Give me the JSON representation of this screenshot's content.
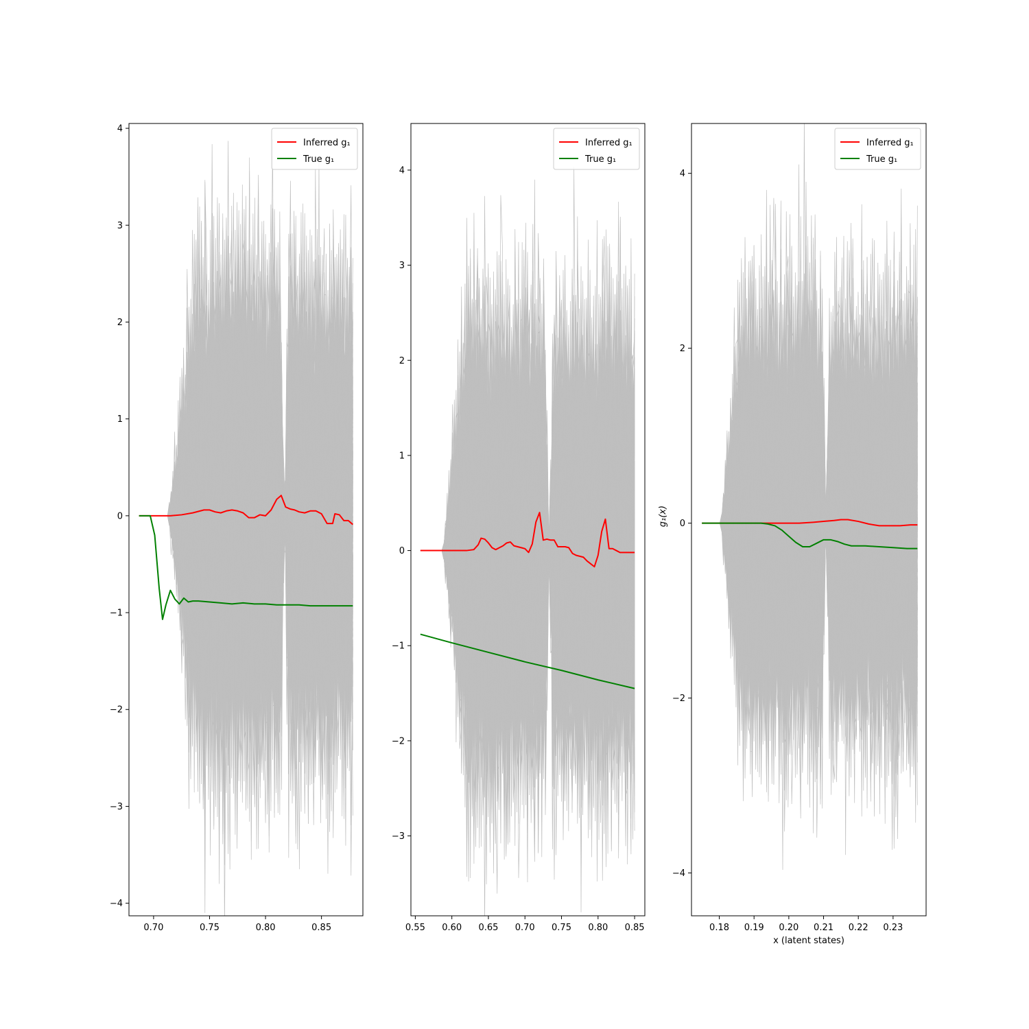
{
  "chart_data": [
    {
      "type": "line",
      "title": "",
      "xlabel": "",
      "ylabel": "",
      "xlim": [
        0.678,
        0.887
      ],
      "ylim": [
        -4.13,
        4.05
      ],
      "xticks": [
        0.7,
        0.75,
        0.8,
        0.85
      ],
      "xtick_labels": [
        "0.70",
        "0.75",
        "0.80",
        "0.85"
      ],
      "yticks": [
        -4,
        -3,
        -2,
        -1,
        0,
        1,
        2,
        3,
        4
      ],
      "ytick_labels": [
        "−4",
        "−3",
        "−2",
        "−1",
        "0",
        "1",
        "2",
        "3",
        "4"
      ],
      "legend_position": "top-right",
      "background_samples": {
        "color": "#bfbfbf",
        "count": 300,
        "x_start": 0.687,
        "x_end": 0.878,
        "flat_until": 0.713,
        "ramp_until": 0.74,
        "pinch_at": 0.817,
        "segments": [
          {
            "x_from": 0.713,
            "x_to": 0.817,
            "amplitude": 1.3
          },
          {
            "x_from": 0.817,
            "x_to": 0.878,
            "amplitude": 1.25
          }
        ]
      },
      "series": [
        {
          "name": "Inferred g₁",
          "color": "#ff0000",
          "x": [
            0.687,
            0.7,
            0.715,
            0.725,
            0.735,
            0.745,
            0.75,
            0.755,
            0.76,
            0.765,
            0.77,
            0.775,
            0.78,
            0.785,
            0.79,
            0.795,
            0.8,
            0.805,
            0.81,
            0.814,
            0.818,
            0.822,
            0.826,
            0.83,
            0.835,
            0.84,
            0.845,
            0.85,
            0.855,
            0.86,
            0.862,
            0.866,
            0.87,
            0.874,
            0.878
          ],
          "y": [
            0.0,
            0.0,
            0.0,
            0.01,
            0.03,
            0.06,
            0.06,
            0.04,
            0.03,
            0.05,
            0.06,
            0.05,
            0.03,
            -0.02,
            -0.02,
            0.01,
            0.0,
            0.06,
            0.17,
            0.21,
            0.09,
            0.07,
            0.06,
            0.04,
            0.03,
            0.05,
            0.05,
            0.02,
            -0.08,
            -0.08,
            0.02,
            0.01,
            -0.05,
            -0.05,
            -0.09
          ]
        },
        {
          "name": "True g₁",
          "color": "#008000",
          "x": [
            0.687,
            0.697,
            0.701,
            0.705,
            0.708,
            0.711,
            0.715,
            0.719,
            0.723,
            0.727,
            0.731,
            0.735,
            0.74,
            0.75,
            0.76,
            0.77,
            0.78,
            0.79,
            0.8,
            0.81,
            0.82,
            0.83,
            0.84,
            0.85,
            0.86,
            0.87,
            0.878
          ],
          "y": [
            0.0,
            0.0,
            -0.2,
            -0.75,
            -1.07,
            -0.92,
            -0.77,
            -0.86,
            -0.91,
            -0.85,
            -0.89,
            -0.88,
            -0.88,
            -0.89,
            -0.9,
            -0.91,
            -0.9,
            -0.91,
            -0.91,
            -0.92,
            -0.92,
            -0.92,
            -0.93,
            -0.93,
            -0.93,
            -0.93,
            -0.93
          ]
        }
      ]
    },
    {
      "type": "line",
      "title": "",
      "xlabel": "",
      "ylabel": "",
      "xlim": [
        0.544,
        0.864
      ],
      "ylim": [
        -3.84,
        4.49
      ],
      "xticks": [
        0.55,
        0.6,
        0.65,
        0.7,
        0.75,
        0.8,
        0.85
      ],
      "xtick_labels": [
        "0.55",
        "0.60",
        "0.65",
        "0.70",
        "0.75",
        "0.80",
        "0.85"
      ],
      "yticks": [
        -3,
        -2,
        -1,
        0,
        1,
        2,
        3,
        4
      ],
      "ytick_labels": [
        "−3",
        "−2",
        "−1",
        "0",
        "1",
        "2",
        "3",
        "4"
      ],
      "legend_position": "top-right",
      "background_samples": {
        "color": "#bfbfbf",
        "count": 300,
        "x_start": 0.557,
        "x_end": 0.85,
        "flat_until": 0.588,
        "ramp_until": 0.62,
        "pinch_at": 0.733,
        "segments": [
          {
            "x_from": 0.588,
            "x_to": 0.733,
            "amplitude": 1.25
          },
          {
            "x_from": 0.733,
            "x_to": 0.85,
            "amplitude": 1.2
          }
        ]
      },
      "series": [
        {
          "name": "Inferred g₁",
          "color": "#ff0000",
          "x": [
            0.557,
            0.62,
            0.63,
            0.636,
            0.64,
            0.645,
            0.65,
            0.655,
            0.66,
            0.665,
            0.67,
            0.675,
            0.68,
            0.685,
            0.69,
            0.695,
            0.7,
            0.705,
            0.71,
            0.715,
            0.72,
            0.725,
            0.73,
            0.735,
            0.74,
            0.745,
            0.75,
            0.755,
            0.76,
            0.765,
            0.77,
            0.775,
            0.78,
            0.785,
            0.79,
            0.795,
            0.8,
            0.805,
            0.81,
            0.815,
            0.82,
            0.825,
            0.83,
            0.835,
            0.84,
            0.845,
            0.85
          ],
          "y": [
            0.0,
            0.0,
            0.01,
            0.06,
            0.13,
            0.12,
            0.08,
            0.03,
            0.01,
            0.03,
            0.05,
            0.08,
            0.09,
            0.05,
            0.04,
            0.03,
            0.02,
            -0.02,
            0.07,
            0.3,
            0.4,
            0.11,
            0.12,
            0.11,
            0.11,
            0.04,
            0.04,
            0.04,
            0.03,
            -0.03,
            -0.05,
            -0.06,
            -0.07,
            -0.11,
            -0.14,
            -0.17,
            -0.05,
            0.2,
            0.33,
            0.02,
            0.02,
            0.0,
            -0.02,
            -0.02,
            -0.02,
            -0.02,
            -0.02
          ]
        },
        {
          "name": "True g₁",
          "color": "#008000",
          "x": [
            0.557,
            0.6,
            0.65,
            0.7,
            0.75,
            0.8,
            0.85
          ],
          "y": [
            -0.88,
            -0.97,
            -1.07,
            -1.17,
            -1.26,
            -1.36,
            -1.45
          ]
        }
      ]
    },
    {
      "type": "line",
      "title": "",
      "xlabel": "x (latent states)",
      "ylabel": "g₁(x)",
      "xlim": [
        0.172,
        0.2395
      ],
      "ylim": [
        -4.49,
        4.57
      ],
      "xticks": [
        0.18,
        0.19,
        0.2,
        0.21,
        0.22,
        0.23
      ],
      "xtick_labels": [
        "0.18",
        "0.19",
        "0.20",
        "0.21",
        "0.22",
        "0.23"
      ],
      "yticks": [
        -4,
        -2,
        0,
        2,
        4
      ],
      "ytick_labels": [
        "−4",
        "−2",
        "0",
        "2",
        "4"
      ],
      "legend_position": "top-right",
      "background_samples": {
        "color": "#bfbfbf",
        "count": 300,
        "x_start": 0.175,
        "x_end": 0.237,
        "flat_until": 0.1805,
        "ramp_until": 0.186,
        "pinch_at": 0.2107,
        "segments": [
          {
            "x_from": 0.1805,
            "x_to": 0.2107,
            "amplitude": 1.25
          },
          {
            "x_from": 0.2107,
            "x_to": 0.237,
            "amplitude": 1.2
          }
        ]
      },
      "series": [
        {
          "name": "Inferred g₁",
          "color": "#ff0000",
          "x": [
            0.175,
            0.195,
            0.203,
            0.207,
            0.21,
            0.213,
            0.215,
            0.217,
            0.22,
            0.223,
            0.226,
            0.229,
            0.232,
            0.235,
            0.237
          ],
          "y": [
            0.0,
            0.0,
            0.0,
            0.01,
            0.02,
            0.03,
            0.04,
            0.04,
            0.02,
            -0.01,
            -0.03,
            -0.03,
            -0.03,
            -0.02,
            -0.02
          ]
        },
        {
          "name": "True g₁",
          "color": "#008000",
          "x": [
            0.175,
            0.192,
            0.194,
            0.196,
            0.198,
            0.2,
            0.202,
            0.204,
            0.206,
            0.208,
            0.21,
            0.212,
            0.214,
            0.216,
            0.218,
            0.222,
            0.226,
            0.23,
            0.234,
            0.237
          ],
          "y": [
            0.0,
            0.0,
            -0.01,
            -0.03,
            -0.08,
            -0.15,
            -0.22,
            -0.27,
            -0.27,
            -0.23,
            -0.19,
            -0.19,
            -0.21,
            -0.24,
            -0.26,
            -0.26,
            -0.27,
            -0.28,
            -0.29,
            -0.29
          ]
        }
      ]
    }
  ]
}
